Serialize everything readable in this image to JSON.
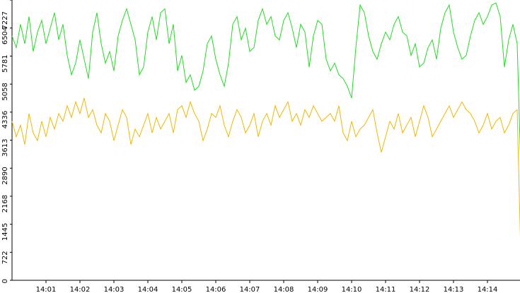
{
  "chart_data": {
    "type": "line",
    "x": [
      0,
      0.125,
      0.25,
      0.375,
      0.5,
      0.625,
      0.75,
      0.875,
      1,
      1.125,
      1.25,
      1.375,
      1.5,
      1.625,
      1.75,
      1.875,
      2,
      2.125,
      2.25,
      2.375,
      2.5,
      2.625,
      2.75,
      2.875,
      3,
      3.125,
      3.25,
      3.375,
      3.5,
      3.625,
      3.75,
      3.875,
      4,
      4.125,
      4.25,
      4.375,
      4.5,
      4.625,
      4.75,
      4.875,
      5,
      5.125,
      5.25,
      5.375,
      5.5,
      5.625,
      5.75,
      5.875,
      6,
      6.125,
      6.25,
      6.375,
      6.5,
      6.625,
      6.75,
      6.875,
      7,
      7.125,
      7.25,
      7.375,
      7.5,
      7.625,
      7.75,
      7.875,
      8,
      8.125,
      8.25,
      8.375,
      8.5,
      8.625,
      8.75,
      8.875,
      9,
      9.125,
      9.25,
      9.375,
      9.5,
      9.625,
      9.75,
      9.875,
      10,
      10.125,
      10.25,
      10.375,
      10.5,
      10.625,
      10.75,
      10.875,
      11,
      11.125,
      11.25,
      11.375,
      11.5,
      11.625,
      11.75,
      11.875,
      12,
      12.125,
      12.25,
      12.375,
      12.5,
      12.625,
      12.75,
      12.875,
      13,
      13.125,
      13.25,
      13.375,
      13.5,
      13.625,
      13.75,
      13.875,
      14,
      14.125,
      14.25,
      14.375,
      14.5,
      14.625,
      14.75,
      14.875,
      15
    ],
    "series": [
      {
        "color": "#22dd22",
        "values": [
          6300,
          6000,
          6600,
          6100,
          6800,
          5900,
          6400,
          6700,
          6100,
          6500,
          6900,
          6200,
          6600,
          5800,
          5300,
          5600,
          6200,
          5700,
          5200,
          6400,
          6900,
          6100,
          5600,
          5900,
          5400,
          6300,
          6700,
          7000,
          6600,
          6200,
          5300,
          5500,
          6400,
          6800,
          6200,
          6900,
          7000,
          6100,
          6600,
          5400,
          5800,
          5100,
          5300,
          4900,
          5000,
          5400,
          6100,
          6300,
          5700,
          5300,
          5000,
          5600,
          6600,
          6800,
          6200,
          6500,
          5900,
          6000,
          6700,
          7000,
          6600,
          6800,
          6300,
          6200,
          6700,
          6900,
          6500,
          6000,
          6600,
          6400,
          5500,
          6300,
          6700,
          6600,
          5700,
          5400,
          5600,
          5300,
          5200,
          5000,
          4700,
          6000,
          7100,
          6900,
          6300,
          5900,
          5700,
          6100,
          6400,
          6200,
          6600,
          6800,
          6400,
          6300,
          5800,
          6100,
          5500,
          5600,
          6000,
          6200,
          5700,
          6500,
          6900,
          7100,
          6400,
          6000,
          5700,
          5800,
          6300,
          6700,
          6900,
          6600,
          6800,
          7100,
          7150,
          6800,
          5500,
          6200,
          6600,
          6100,
          2300
        ]
      },
      {
        "color": "#f0b800",
        "values": [
          4100,
          3700,
          4000,
          3500,
          4300,
          3800,
          3600,
          4100,
          3700,
          4200,
          3900,
          4300,
          4100,
          4500,
          4200,
          4600,
          4300,
          4700,
          4200,
          4400,
          4000,
          3800,
          4300,
          4100,
          3600,
          4000,
          4400,
          4200,
          3500,
          3900,
          3700,
          4000,
          4300,
          3800,
          4200,
          3900,
          4100,
          4300,
          3800,
          4400,
          4500,
          4200,
          4600,
          4300,
          4100,
          3600,
          3900,
          4300,
          4200,
          4500,
          4000,
          3700,
          4100,
          4400,
          4200,
          3800,
          4000,
          4300,
          3700,
          4100,
          4300,
          4000,
          4500,
          4200,
          4400,
          4600,
          4100,
          4300,
          4000,
          4400,
          4200,
          4500,
          4300,
          4100,
          4200,
          4300,
          4100,
          4500,
          3800,
          3600,
          4100,
          3700,
          3900,
          4000,
          4200,
          4400,
          3800,
          3300,
          3700,
          4100,
          3900,
          4300,
          3800,
          4000,
          4200,
          3700,
          4100,
          4500,
          4200,
          3700,
          3900,
          4100,
          4300,
          4500,
          4200,
          4400,
          4600,
          4400,
          4300,
          4100,
          3800,
          4000,
          4300,
          3900,
          4100,
          4200,
          3800,
          4000,
          4300,
          4400,
          0
        ]
      }
    ],
    "xlim": [
      0,
      15
    ],
    "xticks": [
      {
        "value": 1,
        "label": "14:01"
      },
      {
        "value": 2,
        "label": "14:02"
      },
      {
        "value": 3,
        "label": "14:03"
      },
      {
        "value": 4,
        "label": "14:04"
      },
      {
        "value": 5,
        "label": "14:05"
      },
      {
        "value": 6,
        "label": "14:06"
      },
      {
        "value": 7,
        "label": "14:07"
      },
      {
        "value": 8,
        "label": "14:08"
      },
      {
        "value": 9,
        "label": "14:09"
      },
      {
        "value": 10,
        "label": "14:10"
      },
      {
        "value": 11,
        "label": "14:11"
      },
      {
        "value": 12,
        "label": "14:12"
      },
      {
        "value": 13,
        "label": "14:13"
      },
      {
        "value": 14,
        "label": "14:14"
      }
    ],
    "ylim": [
      0,
      7227
    ],
    "yticks": [
      0,
      722,
      1445,
      2168,
      2890,
      3613,
      4336,
      5058,
      5781,
      6504,
      7227
    ]
  }
}
